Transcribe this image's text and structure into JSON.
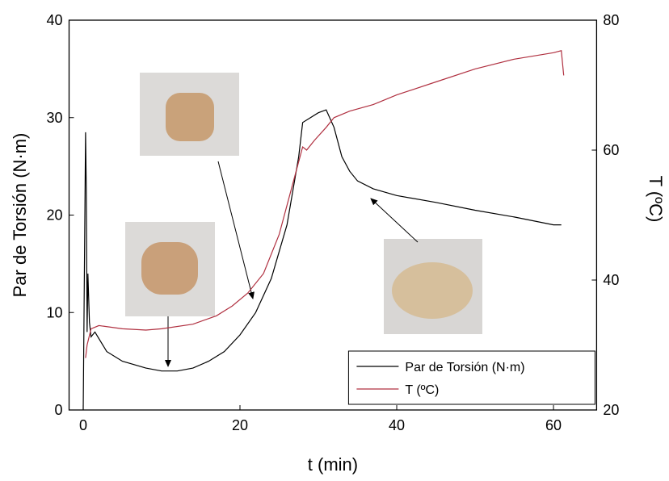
{
  "chart_data": {
    "type": "line",
    "xlabel": "t (min)",
    "ylabel": "Par de Torsión (N·m)",
    "y2label": "T (ºC)",
    "xlim": [
      -1.8,
      65.5
    ],
    "xticks": [
      0,
      20,
      40,
      60
    ],
    "ylim": [
      0,
      40
    ],
    "yticks": [
      0,
      10,
      20,
      30,
      40
    ],
    "y2lim": [
      20,
      80
    ],
    "y2ticks": [
      20,
      40,
      60,
      80
    ],
    "legend": "lower right",
    "series": [
      {
        "name": "Par de Torsión (N·m)",
        "color": "#000000",
        "x": [
          0,
          0.3,
          0.4,
          0.5,
          0.6,
          0.8,
          1,
          1.5,
          3,
          5,
          8,
          10,
          12,
          14,
          16,
          18,
          20,
          22,
          24,
          26,
          27.5,
          28,
          29,
          30,
          31,
          32,
          33,
          34,
          35,
          37,
          40,
          45,
          50,
          55,
          60,
          61
        ],
        "values": [
          0,
          28.5,
          22.6,
          8,
          14,
          9,
          7.5,
          8,
          6,
          5,
          4.3,
          4,
          4,
          4.3,
          5,
          6,
          7.7,
          10,
          13.5,
          19,
          26,
          29.5,
          30,
          30.5,
          30.8,
          29,
          26,
          24.5,
          23.5,
          22.7,
          22,
          21.3,
          20.5,
          19.8,
          19,
          19
        ]
      },
      {
        "name": "T (ºC)",
        "color": "#b03040",
        "axis": "y2",
        "x": [
          0.3,
          0.5,
          1,
          2,
          5,
          8,
          10,
          14,
          17,
          19,
          21,
          23,
          25,
          27,
          28,
          28.5,
          29.5,
          31,
          32,
          34,
          37,
          40,
          45,
          50,
          55,
          60,
          61,
          61.3
        ],
        "values": [
          28,
          30,
          32.5,
          33,
          32.5,
          32.3,
          32.5,
          33.2,
          34.5,
          36,
          38,
          41,
          47,
          56,
          60.5,
          60,
          61.5,
          63.5,
          65,
          66,
          67,
          68.5,
          70.5,
          72.5,
          74,
          75,
          75.3,
          71.5
        ]
      }
    ]
  }
}
